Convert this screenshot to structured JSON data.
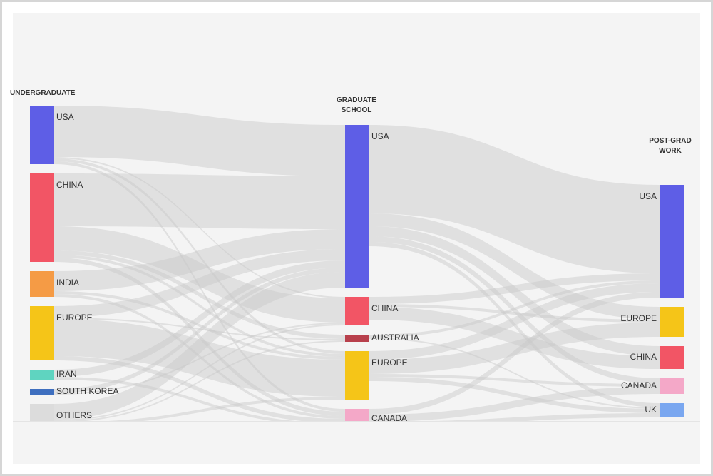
{
  "chart_data": {
    "type": "sankey",
    "columns": [
      {
        "title": "UNDERGRADUATE",
        "nodes": [
          {
            "name": "USA",
            "value": 41,
            "color": "#5e5ee6"
          },
          {
            "name": "CHINA",
            "value": 62,
            "color": "#f25565"
          },
          {
            "name": "INDIA",
            "value": 18,
            "color": "#f59b45"
          },
          {
            "name": "EUROPE",
            "value": 38,
            "color": "#f5c518"
          },
          {
            "name": "IRAN",
            "value": 7,
            "color": "#5fd4c0"
          },
          {
            "name": "SOUTH KOREA",
            "value": 4,
            "color": "#3e6fbf"
          },
          {
            "name": "OTHERS",
            "value": 17,
            "color": "#dcdcdc"
          }
        ],
        "links": [
          {
            "source": "USA",
            "target": "USA",
            "value": 36
          },
          {
            "source": "USA",
            "target": "CHINA",
            "value": 1
          },
          {
            "source": "USA",
            "target": "EUROPE",
            "value": 2
          },
          {
            "source": "USA",
            "target": "CANADA",
            "value": 2
          },
          {
            "source": "CHINA",
            "target": "USA",
            "value": 37
          },
          {
            "source": "CHINA",
            "target": "CHINA",
            "value": 17
          },
          {
            "source": "CHINA",
            "target": "AUSTRALIA",
            "value": 3
          },
          {
            "source": "CHINA",
            "target": "EUROPE",
            "value": 2
          },
          {
            "source": "CHINA",
            "target": "CANADA",
            "value": 3
          },
          {
            "source": "INDIA",
            "target": "USA",
            "value": 14
          },
          {
            "source": "INDIA",
            "target": "EUROPE",
            "value": 2
          },
          {
            "source": "INDIA",
            "target": "CANADA",
            "value": 2
          },
          {
            "source": "EUROPE",
            "target": "USA",
            "value": 8
          },
          {
            "source": "EUROPE",
            "target": "EUROPE",
            "value": 26
          },
          {
            "source": "EUROPE",
            "target": "AUSTRALIA",
            "value": 1
          },
          {
            "source": "EUROPE",
            "target": "CANADA",
            "value": 3
          },
          {
            "source": "IRAN",
            "target": "USA",
            "value": 5
          },
          {
            "source": "IRAN",
            "target": "CANADA",
            "value": 2
          },
          {
            "source": "SOUTH KOREA",
            "target": "USA",
            "value": 3
          },
          {
            "source": "SOUTH KOREA",
            "target": "CHINA",
            "value": 1
          },
          {
            "source": "OTHERS",
            "target": "USA",
            "value": 11
          },
          {
            "source": "OTHERS",
            "target": "CHINA",
            "value": 1
          },
          {
            "source": "OTHERS",
            "target": "AUSTRALIA",
            "value": 1
          },
          {
            "source": "OTHERS",
            "target": "EUROPE",
            "value": 2
          },
          {
            "source": "OTHERS",
            "target": "CANADA",
            "value": 2
          }
        ]
      },
      {
        "title": "GRADUATE SCHOOL",
        "nodes": [
          {
            "name": "USA",
            "value": 114,
            "color": "#5e5ee6"
          },
          {
            "name": "CHINA",
            "value": 20,
            "color": "#f25565"
          },
          {
            "name": "AUSTRALIA",
            "value": 5,
            "color": "#b8404c"
          },
          {
            "name": "EUROPE",
            "value": 34,
            "color": "#f5c518"
          },
          {
            "name": "CANADA",
            "value": 14,
            "color": "#f4a8c8"
          }
        ],
        "links": [
          {
            "source": "USA",
            "target": "USA",
            "value": 62
          },
          {
            "source": "USA",
            "target": "EUROPE",
            "value": 9
          },
          {
            "source": "USA",
            "target": "CHINA",
            "value": 7
          },
          {
            "source": "USA",
            "target": "CANADA",
            "value": 4
          },
          {
            "source": "USA",
            "target": "UK",
            "value": 3
          },
          {
            "source": "CHINA",
            "target": "USA",
            "value": 5
          },
          {
            "source": "CHINA",
            "target": "CHINA",
            "value": 9
          },
          {
            "source": "CHINA",
            "target": "EUROPE",
            "value": 2
          },
          {
            "source": "AUSTRALIA",
            "target": "USA",
            "value": 2
          },
          {
            "source": "AUSTRALIA",
            "target": "UK",
            "value": 1
          },
          {
            "source": "EUROPE",
            "target": "USA",
            "value": 6
          },
          {
            "source": "EUROPE",
            "target": "EUROPE",
            "value": 10
          },
          {
            "source": "EUROPE",
            "target": "UK",
            "value": 3
          },
          {
            "source": "EUROPE",
            "target": "CANADA",
            "value": 2
          },
          {
            "source": "CANADA",
            "target": "USA",
            "value": 4
          },
          {
            "source": "CANADA",
            "target": "CANADA",
            "value": 5
          },
          {
            "source": "CANADA",
            "target": "UK",
            "value": 3
          }
        ]
      },
      {
        "title": "POST-GRAD WORK",
        "nodes": [
          {
            "name": "USA",
            "value": 79,
            "color": "#5e5ee6"
          },
          {
            "name": "EUROPE",
            "value": 21,
            "color": "#f5c518"
          },
          {
            "name": "CHINA",
            "value": 16,
            "color": "#f25565"
          },
          {
            "name": "CANADA",
            "value": 11,
            "color": "#f4a8c8"
          },
          {
            "name": "UK",
            "value": 10,
            "color": "#7aa7f0"
          }
        ]
      }
    ]
  }
}
